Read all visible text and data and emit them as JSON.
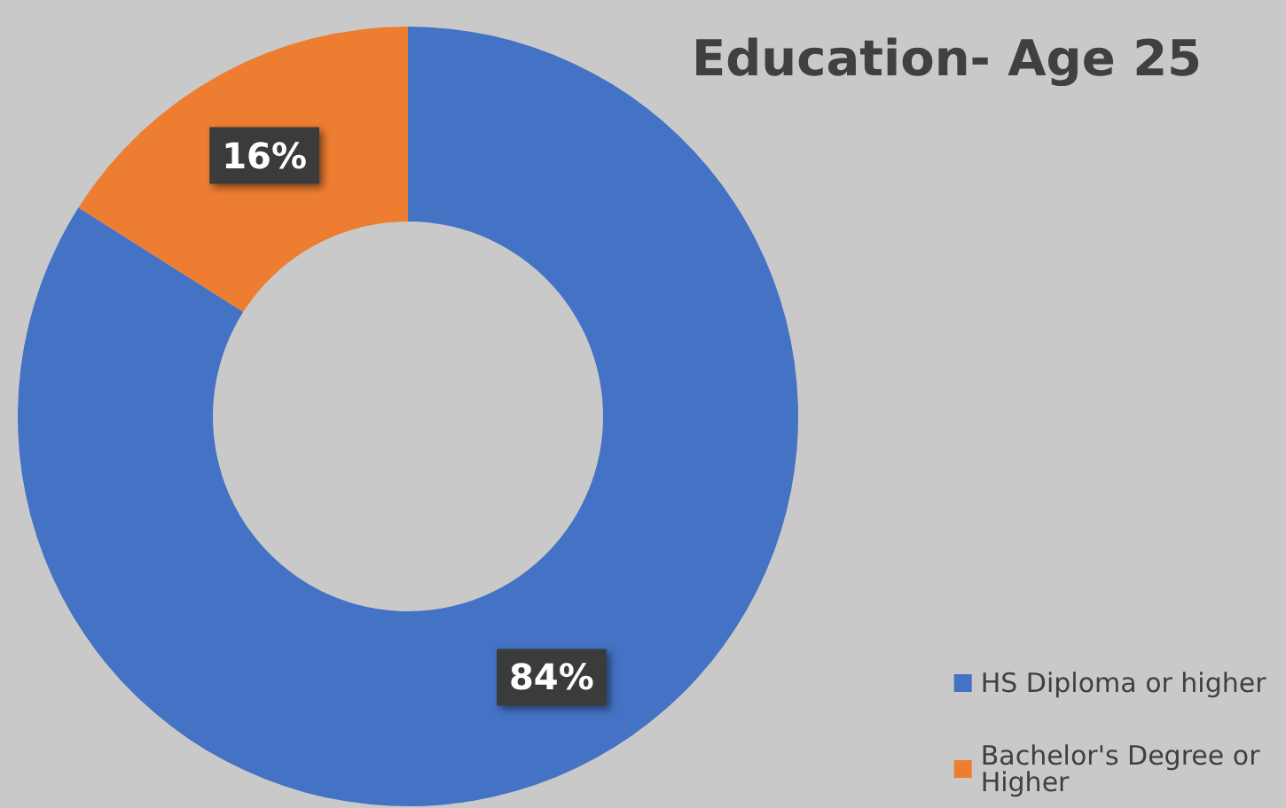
{
  "chart_data": {
    "type": "donut",
    "title": "Education- Age 25",
    "categories": [
      "HS Diploma or higher",
      "Bachelor's Degree or Higher"
    ],
    "values": [
      84,
      16
    ],
    "colors": [
      "#4472c4",
      "#ed7d31"
    ],
    "value_labels": [
      "84%",
      "16%"
    ],
    "legend": "bottom right"
  }
}
